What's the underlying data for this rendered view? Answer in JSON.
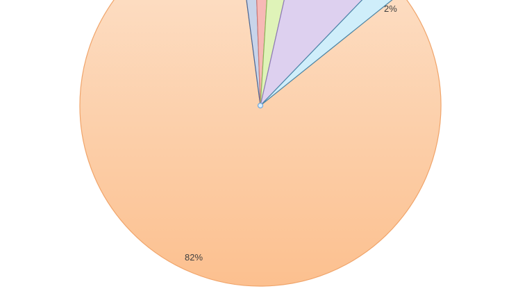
{
  "chart_data": {
    "type": "pie",
    "title": "",
    "slices": [
      {
        "label": "82%",
        "value": 82,
        "color": "#fdc9a0",
        "stroke": "#f0a46a",
        "gradient_top": "#fde3cd",
        "gradient_bottom": "#fcc08f"
      },
      {
        "label": "",
        "value": 1.5,
        "color": "#c8d4ea",
        "stroke": "#4a6694"
      },
      {
        "label": "",
        "value": 1.5,
        "color": "#f7b9b6",
        "stroke": "#d07a76"
      },
      {
        "label": "",
        "value": 2.5,
        "color": "#dff3b8",
        "stroke": "#8cb45a"
      },
      {
        "label": "",
        "value": 8.5,
        "color": "#ddd0ef",
        "stroke": "#8e78b8"
      },
      {
        "label": "2%",
        "value": 2,
        "color": "#cfeefa",
        "stroke": "#4a86a8"
      }
    ],
    "label_color": "#404040",
    "selection_handle_color": "#6fa8dc",
    "legend": "none"
  }
}
